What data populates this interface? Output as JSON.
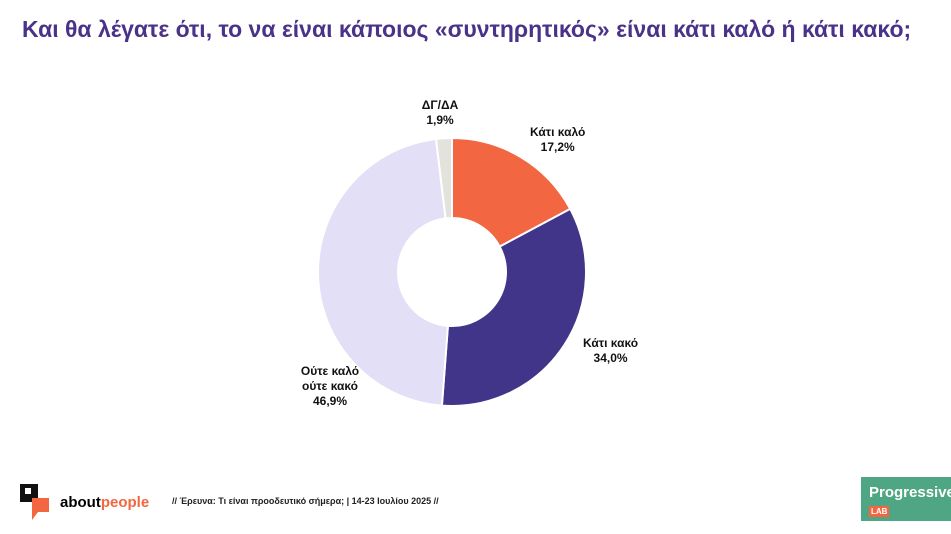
{
  "title": "Και θα λέγατε ότι, το να είναι κάποιος «συντηρητικός» είναι κάτι καλό ή κάτι κακό;",
  "chart_data": {
    "type": "pie",
    "donut": true,
    "title": "Και θα λέγατε ότι, το να είναι κάποιος «συντηρητικός» είναι κάτι καλό ή κάτι κακό;",
    "slices": [
      {
        "label": "Κάτι καλό",
        "value": 17.2,
        "text": "17,2%",
        "color": "#f26641"
      },
      {
        "label": "Κάτι κακό",
        "value": 34.0,
        "text": "34,0%",
        "color": "#403588"
      },
      {
        "label": "Ούτε καλό ούτε κακό",
        "value": 46.9,
        "text": "46,9%",
        "color": "#e3dff6"
      },
      {
        "label": "ΔΓ/ΔΑ",
        "value": 1.9,
        "text": "1,9%",
        "color": "#e4e2dd"
      }
    ]
  },
  "footer": {
    "brand_a": "about",
    "brand_b": "people",
    "source": "// Έρευνα: Τι είναι προοδευτικό σήμερα; | 14-23 Ιουλίου 2025 //",
    "partner": "Progressive",
    "partner_sub": "LAB"
  }
}
